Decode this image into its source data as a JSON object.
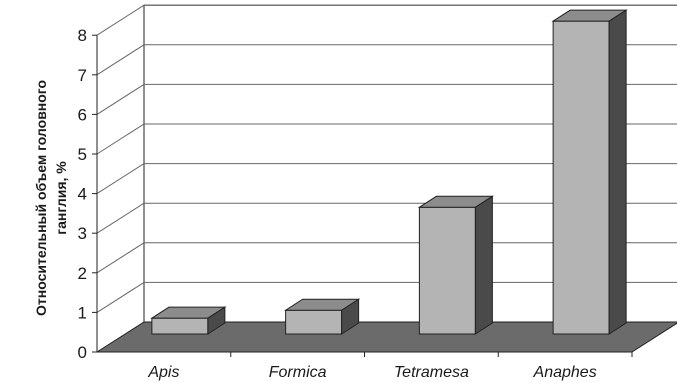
{
  "chart_data": {
    "type": "bar",
    "style": "3d",
    "categories": [
      "Apis",
      "Formica",
      "Tetramesa",
      "Anaphes"
    ],
    "values": [
      0.4,
      0.6,
      3.2,
      7.9
    ],
    "ylabel_line1": "Относительный объем головного",
    "ylabel_line2": "ганглия, %",
    "ylim": [
      0,
      8
    ],
    "yticks": [
      "0",
      "1",
      "2",
      "3",
      "4",
      "5",
      "6",
      "7",
      "8"
    ],
    "grid": true,
    "colors": {
      "bar_front": "#b4b4b4",
      "bar_top": "#8c8c8c",
      "bar_side": "#4a4a4a",
      "floor": "#6b6b6b",
      "wall": "#ffffff",
      "axis": "#222222",
      "grid": "#666666"
    }
  }
}
